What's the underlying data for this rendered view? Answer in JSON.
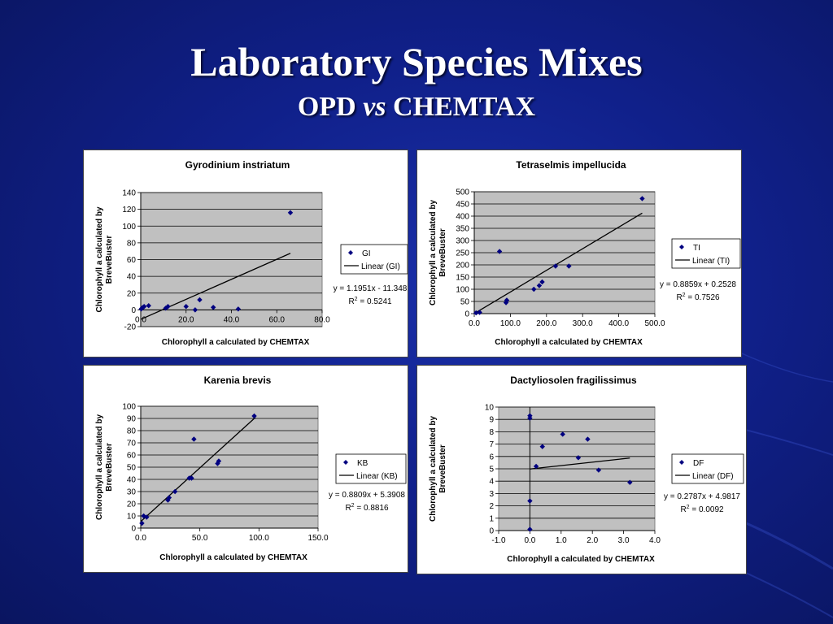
{
  "slide": {
    "title": "Laboratory Species Mixes",
    "subtitle_prefix": "OPD",
    "subtitle_vs": "vs",
    "subtitle_suffix": "CHEMTAX"
  },
  "colors": {
    "background": "#10208a",
    "marker": "#000080",
    "plot_area": "#c0c0c0",
    "trendline": "#000000"
  },
  "chart_data": [
    {
      "type": "scatter",
      "title": "Gyrodinium instriatum",
      "xlabel": "Chlorophyll a calculated by CHEMTAX",
      "ylabel_lines": [
        "Chlorophyll a calculated by",
        "BreveBuster"
      ],
      "xlim": [
        0,
        80
      ],
      "ylim": [
        -20,
        140
      ],
      "xticks": [
        "0.0",
        "20.0",
        "40.0",
        "60.0",
        "80.0"
      ],
      "yticks": [
        "-20",
        "0",
        "20",
        "40",
        "60",
        "80",
        "100",
        "120",
        "140"
      ],
      "series": [
        {
          "name": "GI",
          "x": [
            0.2,
            0.5,
            1,
            1.5,
            3.5,
            11,
            12,
            20,
            24,
            26,
            32,
            43,
            66
          ],
          "y": [
            1,
            2,
            3,
            4,
            5,
            2,
            4,
            4,
            0,
            12,
            3,
            1,
            116
          ]
        }
      ],
      "trendline": {
        "name": "Linear (GI)",
        "slope": 1.1951,
        "intercept": -11.348,
        "x_range": [
          0,
          66
        ]
      },
      "equation": "y = 1.1951x - 11.348",
      "r2_value": " = 0.5241",
      "grid": true,
      "legend_position": "right"
    },
    {
      "type": "scatter",
      "title": "Tetraselmis impellucida",
      "xlabel": "Chlorophyll a calculated by CHEMTAX",
      "ylabel_lines": [
        "Chlorophyll a calculated by",
        "BreveBuster"
      ],
      "xlim": [
        0,
        500
      ],
      "ylim": [
        0,
        500
      ],
      "xticks": [
        "0.0",
        "100.0",
        "200.0",
        "300.0",
        "400.0",
        "500.0"
      ],
      "yticks": [
        "0",
        "50",
        "100",
        "150",
        "200",
        "250",
        "300",
        "350",
        "400",
        "450",
        "500"
      ],
      "series": [
        {
          "name": "TI",
          "x": [
            5,
            15,
            70,
            88,
            90,
            165,
            180,
            188,
            225,
            262,
            465
          ],
          "y": [
            3,
            5,
            255,
            45,
            55,
            100,
            115,
            130,
            195,
            195,
            472
          ]
        }
      ],
      "trendline": {
        "name": "Linear (TI)",
        "slope": 0.8859,
        "intercept": 0.2528,
        "x_range": [
          0,
          465
        ]
      },
      "equation": "y = 0.8859x + 0.2528",
      "r2_value": " = 0.7526",
      "grid": true,
      "legend_position": "right"
    },
    {
      "type": "scatter",
      "title": "Karenia brevis",
      "xlabel": "Chlorophyll a calculated by CHEMTAX",
      "ylabel_lines": [
        "Chlorophyll a calculated by",
        "BreveBuster"
      ],
      "xlim": [
        0,
        150
      ],
      "ylim": [
        0,
        100
      ],
      "xticks": [
        "0.0",
        "50.0",
        "100.0",
        "150.0"
      ],
      "yticks": [
        "0",
        "10",
        "20",
        "30",
        "40",
        "50",
        "60",
        "70",
        "80",
        "90",
        "100"
      ],
      "series": [
        {
          "name": "KB",
          "x": [
            1,
            2.5,
            5,
            23,
            24,
            29,
            41,
            43,
            45,
            65,
            66,
            96
          ],
          "y": [
            4,
            10,
            9,
            23,
            25,
            30,
            41,
            41,
            73,
            53,
            55,
            92
          ]
        }
      ],
      "trendline": {
        "name": "Linear (KB)",
        "slope": 0.8809,
        "intercept": 5.3908,
        "x_range": [
          0,
          97
        ]
      },
      "equation": "y = 0.8809x + 5.3908",
      "r2_value": " = 0.8816",
      "grid": true,
      "legend_position": "right"
    },
    {
      "type": "scatter",
      "title": "Dactyliosolen fragilissimus",
      "xlabel": "Chlorophyll a calculated by CHEMTAX",
      "ylabel_lines": [
        "Chlorophyll a calculated by",
        "BreveBuster"
      ],
      "xlim": [
        -1,
        4
      ],
      "ylim": [
        0,
        10
      ],
      "xticks": [
        "-1.0",
        "0.0",
        "1.0",
        "2.0",
        "3.0",
        "4.0"
      ],
      "yticks": [
        "0",
        "1",
        "2",
        "3",
        "4",
        "5",
        "6",
        "7",
        "8",
        "9",
        "10"
      ],
      "series": [
        {
          "name": "DF",
          "x": [
            0,
            0,
            0,
            0,
            0.2,
            0.4,
            1.05,
            1.55,
            1.85,
            2.2,
            3.2
          ],
          "y": [
            0.1,
            2.4,
            9.1,
            9.3,
            5.2,
            6.8,
            7.8,
            5.9,
            7.4,
            4.9,
            3.9
          ]
        }
      ],
      "trendline": {
        "name": "Linear (DF)",
        "slope": 0.2787,
        "intercept": 4.9817,
        "x_range": [
          0,
          3.2
        ]
      },
      "equation": "y = 0.2787x + 4.9817",
      "r2_value": " = 0.0092",
      "grid": true,
      "legend_position": "right"
    }
  ]
}
